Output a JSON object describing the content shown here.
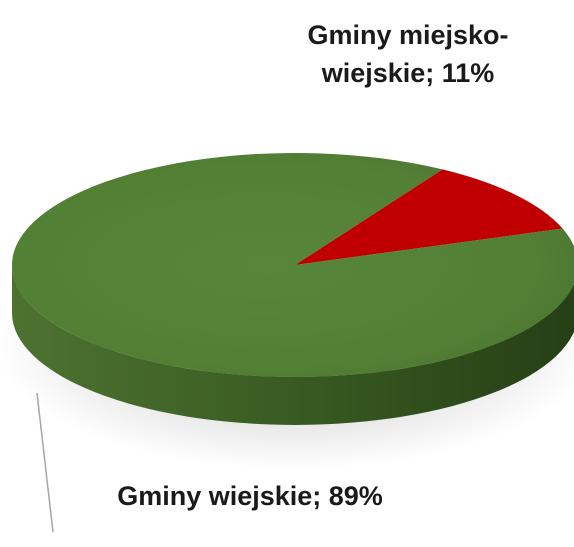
{
  "chart_data": {
    "type": "pie",
    "title": "",
    "slices": [
      {
        "label": "Gminy miejsko-wiejskie",
        "value": 11,
        "color": "#c00000"
      },
      {
        "label": "Gminy wiejskie",
        "value": 89,
        "color": "#548235"
      }
    ],
    "data_labels": {
      "small": {
        "line1": "Gminy miejsko-",
        "line2": "wiejskie; 11%"
      },
      "large": "Gminy wiejskie; 89%"
    },
    "style": "3d"
  }
}
